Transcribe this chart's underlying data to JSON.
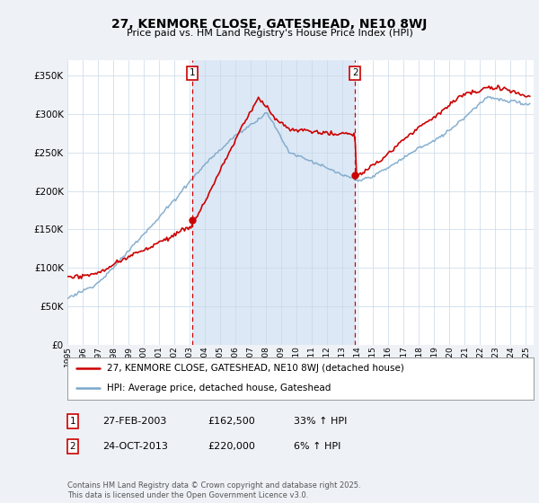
{
  "title": "27, KENMORE CLOSE, GATESHEAD, NE10 8WJ",
  "subtitle": "Price paid vs. HM Land Registry's House Price Index (HPI)",
  "ylabel_ticks": [
    "£0",
    "£50K",
    "£100K",
    "£150K",
    "£200K",
    "£250K",
    "£300K",
    "£350K"
  ],
  "ytick_values": [
    0,
    50000,
    100000,
    150000,
    200000,
    250000,
    300000,
    350000
  ],
  "ylim": [
    0,
    370000
  ],
  "xlim_start": 1995.0,
  "xlim_end": 2025.5,
  "legend_line1": "27, KENMORE CLOSE, GATESHEAD, NE10 8WJ (detached house)",
  "legend_line2": "HPI: Average price, detached house, Gateshead",
  "line1_color": "#cc0000",
  "line2_color": "#7ba7c9",
  "shade_color": "#dce8f5",
  "marker1_date": 2003.15,
  "marker1_price": 162500,
  "marker2_date": 2013.82,
  "marker2_price": 220000,
  "table_row1": [
    "1",
    "27-FEB-2003",
    "£162,500",
    "33% ↑ HPI"
  ],
  "table_row2": [
    "2",
    "24-OCT-2013",
    "£220,000",
    "6% ↑ HPI"
  ],
  "footnote": "Contains HM Land Registry data © Crown copyright and database right 2025.\nThis data is licensed under the Open Government Licence v3.0.",
  "background_color": "#eef2f7",
  "plot_bg_color": "#ffffff",
  "grid_color": "#c8d8e8"
}
